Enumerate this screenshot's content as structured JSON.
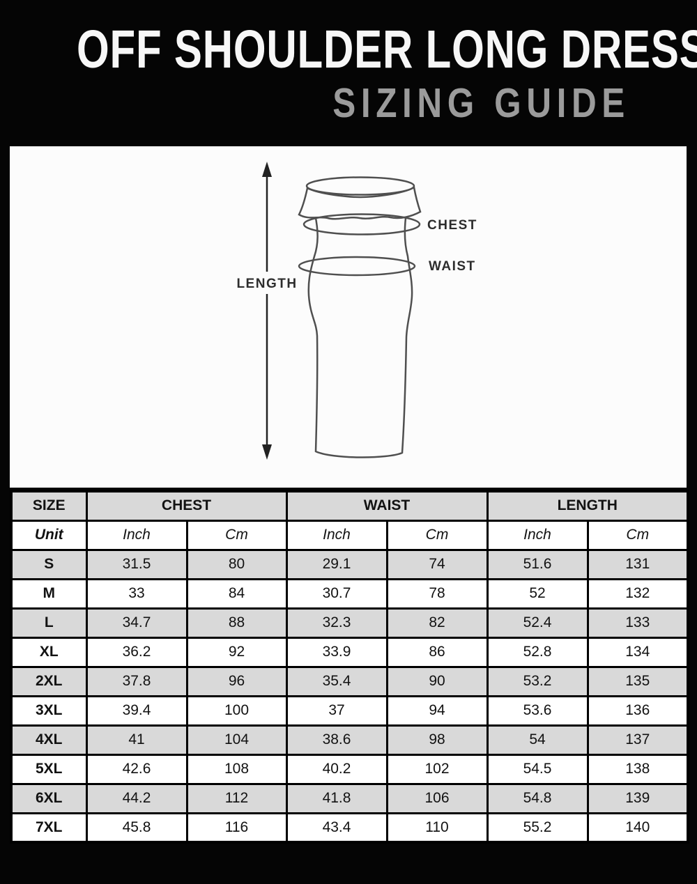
{
  "header": {
    "title": "OFF SHOULDER LONG DRESS",
    "subtitle": "SIZING GUIDE"
  },
  "diagram": {
    "length_label": "LENGTH",
    "chest_label": "CHEST",
    "waist_label": "WAIST"
  },
  "table": {
    "group_headers": [
      {
        "label": "SIZE",
        "span": 1
      },
      {
        "label": "CHEST",
        "span": 2
      },
      {
        "label": "WAIST",
        "span": 2
      },
      {
        "label": "LENGTH",
        "span": 2
      }
    ],
    "unit_row": {
      "label": "Unit",
      "units": [
        "Inch",
        "Cm",
        "Inch",
        "Cm",
        "Inch",
        "Cm"
      ]
    },
    "rows": [
      {
        "size": "S",
        "values": [
          "31.5",
          "80",
          "29.1",
          "74",
          "51.6",
          "131"
        ]
      },
      {
        "size": "M",
        "values": [
          "33",
          "84",
          "30.7",
          "78",
          "52",
          "132"
        ]
      },
      {
        "size": "L",
        "values": [
          "34.7",
          "88",
          "32.3",
          "82",
          "52.4",
          "133"
        ]
      },
      {
        "size": "XL",
        "values": [
          "36.2",
          "92",
          "33.9",
          "86",
          "52.8",
          "134"
        ]
      },
      {
        "size": "2XL",
        "values": [
          "37.8",
          "96",
          "35.4",
          "90",
          "53.2",
          "135"
        ]
      },
      {
        "size": "3XL",
        "values": [
          "39.4",
          "100",
          "37",
          "94",
          "53.6",
          "136"
        ]
      },
      {
        "size": "4XL",
        "values": [
          "41",
          "104",
          "38.6",
          "98",
          "54",
          "137"
        ]
      },
      {
        "size": "5XL",
        "values": [
          "42.6",
          "108",
          "40.2",
          "102",
          "54.5",
          "138"
        ]
      },
      {
        "size": "6XL",
        "values": [
          "44.2",
          "112",
          "41.8",
          "106",
          "54.8",
          "139"
        ]
      },
      {
        "size": "7XL",
        "values": [
          "45.8",
          "116",
          "43.4",
          "110",
          "55.2",
          "140"
        ]
      }
    ]
  },
  "colors": {
    "background": "#050505",
    "title": "#f7f7f7",
    "subtitle": "#9b9b9b",
    "panel_bg": "#fcfcfc",
    "row_shade": "#d9d9d9",
    "row_plain": "#ffffff",
    "table_border": "#000000",
    "sketch_stroke": "#4f4f4f",
    "label_text": "#2d2d2d"
  }
}
